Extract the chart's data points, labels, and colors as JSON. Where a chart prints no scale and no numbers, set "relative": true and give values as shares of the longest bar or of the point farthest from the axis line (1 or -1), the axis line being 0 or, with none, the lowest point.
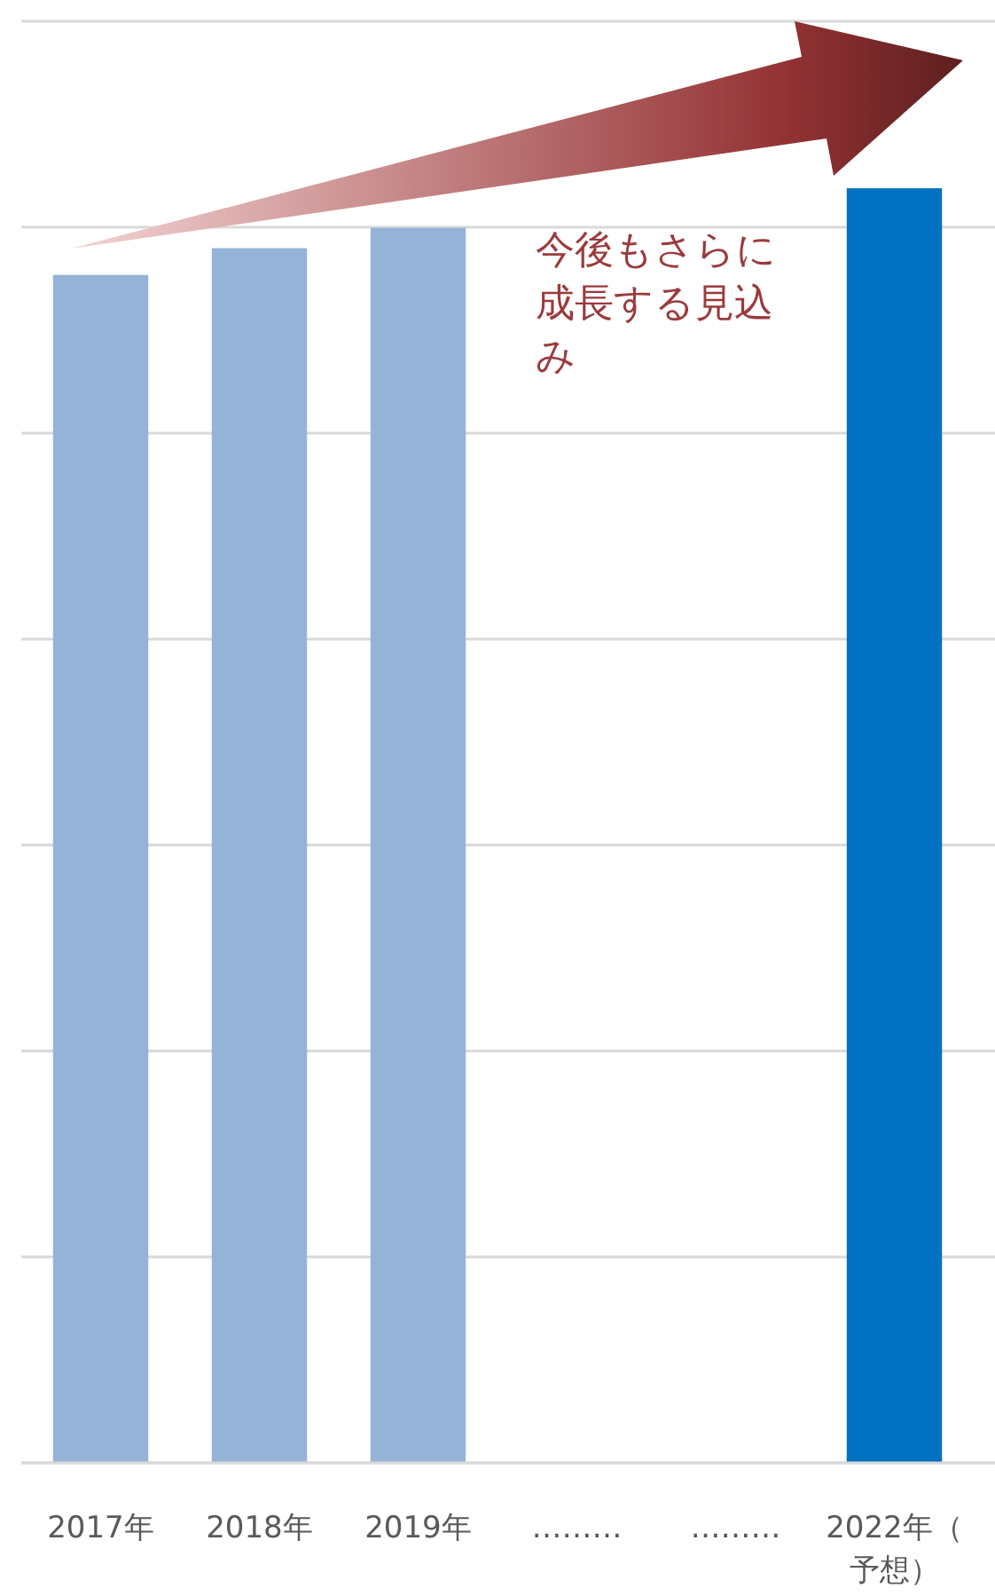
{
  "chart_data": {
    "type": "bar",
    "relative": true,
    "categories": [
      "2017年",
      "2018年",
      "2019年",
      "………",
      "………",
      "2022年（予想）"
    ],
    "values": [
      0.932,
      0.953,
      0.969,
      null,
      null,
      1
    ],
    "colors": [
      "#95b3d7",
      "#95b3d7",
      "#95b3d7",
      null,
      null,
      "#0070c0"
    ],
    "grid": "y",
    "annotations": [
      "今後もさらに成長する見込み"
    ]
  }
}
